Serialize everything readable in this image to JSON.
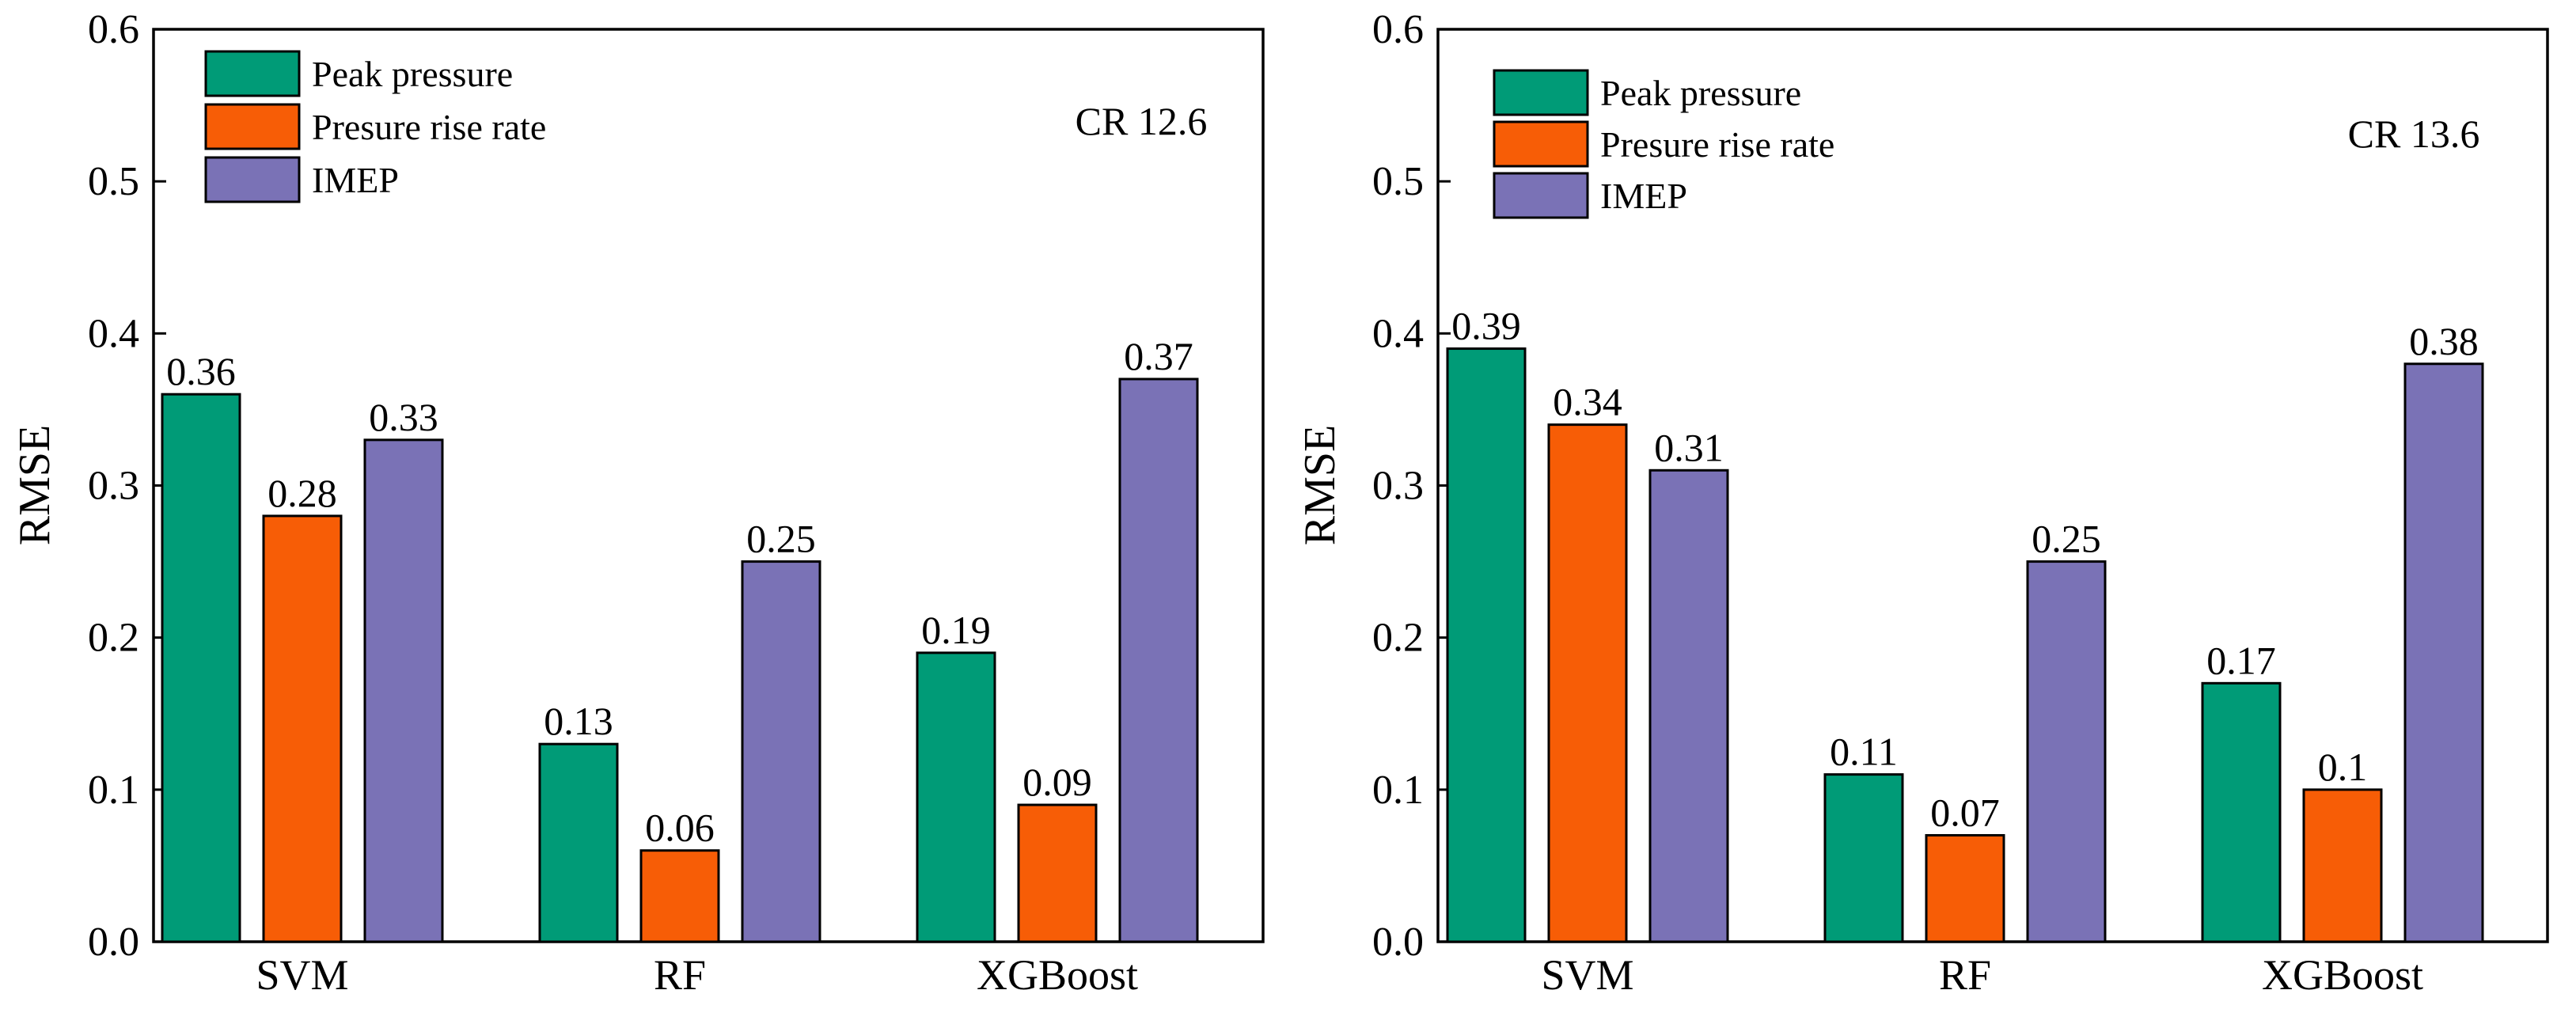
{
  "chart_data": [
    {
      "type": "bar",
      "title": "",
      "annotation": "CR 12.6",
      "xlabel": "",
      "ylabel": "RMSE",
      "ylim": [
        0,
        0.6
      ],
      "yticks": [
        "0.0",
        "0.1",
        "0.2",
        "0.3",
        "0.4",
        "0.5",
        "0.6"
      ],
      "categories": [
        "SVM",
        "RF",
        "XGBoost"
      ],
      "series": [
        {
          "name": "Peak pressure",
          "color": "#009b77",
          "values": [
            0.36,
            0.13,
            0.19
          ],
          "labels": [
            "0.36",
            "0.13",
            "0.19"
          ]
        },
        {
          "name": "Presure rise rate",
          "color": "#f75d06",
          "values": [
            0.28,
            0.06,
            0.09
          ],
          "labels": [
            "0.28",
            "0.06",
            "0.09"
          ]
        },
        {
          "name": "IMEP",
          "color": "#7a72b6",
          "values": [
            0.33,
            0.25,
            0.37
          ],
          "labels": [
            "0.33",
            "0.25",
            "0.37"
          ]
        }
      ],
      "legend_position": "top-left"
    },
    {
      "type": "bar",
      "title": "",
      "annotation": "CR 13.6",
      "xlabel": "",
      "ylabel": "RMSE",
      "ylim": [
        0,
        0.6
      ],
      "yticks": [
        "0.0",
        "0.1",
        "0.2",
        "0.3",
        "0.4",
        "0.5",
        "0.6"
      ],
      "categories": [
        "SVM",
        "RF",
        "XGBoost"
      ],
      "series": [
        {
          "name": "Peak pressure",
          "color": "#009b77",
          "values": [
            0.39,
            0.11,
            0.17
          ],
          "labels": [
            "0.39",
            "0.11",
            "0.17"
          ]
        },
        {
          "name": "Presure rise rate",
          "color": "#f75d06",
          "values": [
            0.34,
            0.07,
            0.1
          ],
          "labels": [
            "0.34",
            "0.07",
            "0.1"
          ]
        },
        {
          "name": "IMEP",
          "color": "#7a72b6",
          "values": [
            0.31,
            0.25,
            0.38
          ],
          "labels": [
            "0.31",
            "0.25",
            "0.38"
          ]
        }
      ],
      "legend_position": "top-left"
    }
  ]
}
